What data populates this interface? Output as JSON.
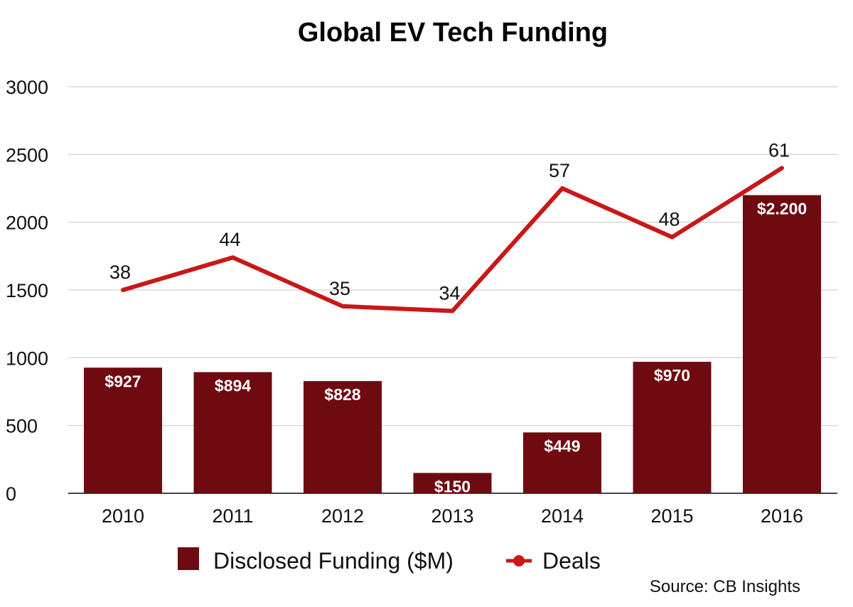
{
  "chart_data": {
    "type": "bar",
    "title": "Global EV Tech Funding",
    "categories": [
      "2010",
      "2011",
      "2012",
      "2013",
      "2014",
      "2015",
      "2016"
    ],
    "series": [
      {
        "name": "Disclosed Funding ($M)",
        "kind": "bar",
        "values": [
          927,
          894,
          828,
          150,
          449,
          970,
          2200
        ],
        "labels": [
          "$927",
          "$894",
          "$828",
          "$150",
          "$449",
          "$970",
          "$2.200"
        ],
        "color": "#6e0a10"
      },
      {
        "name": "Deals",
        "kind": "line",
        "values": [
          38,
          44,
          35,
          34,
          57,
          48,
          61
        ],
        "plotted_on_left_axis": [
          1500,
          1740,
          1380,
          1345,
          2250,
          1890,
          2400
        ],
        "labels": [
          "38",
          "44",
          "35",
          "34",
          "57",
          "48",
          "61"
        ],
        "color": "#c81818"
      }
    ],
    "yticks": [
      "0",
      "500",
      "1000",
      "1500",
      "2000",
      "2500",
      "3000"
    ],
    "ylim": [
      0,
      3000
    ],
    "grid": true,
    "legend": "bottom",
    "source": "Source: CB Insights"
  }
}
